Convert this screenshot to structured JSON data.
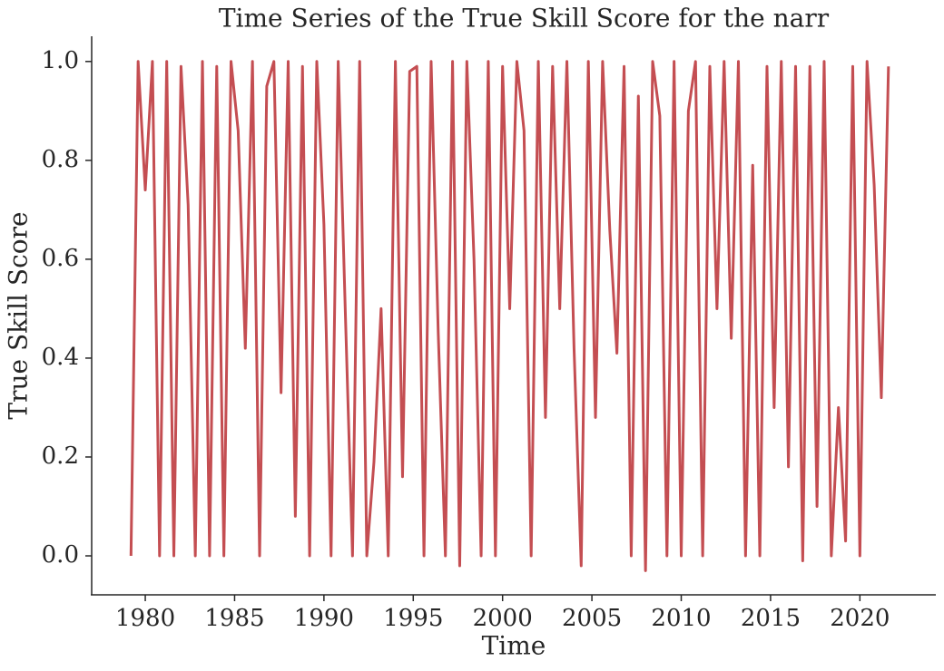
{
  "chart_data": {
    "type": "line",
    "title": "Time Series of the True Skill Score for the narr",
    "x_label": "Time",
    "y_label": "True Skill Score",
    "x": [
      1979.2,
      1979.6,
      1980.0,
      1980.4,
      1980.8,
      1981.2,
      1981.6,
      1982.0,
      1982.4,
      1982.8,
      1983.2,
      1983.6,
      1984.0,
      1984.4,
      1984.8,
      1985.2,
      1985.6,
      1986.0,
      1986.4,
      1986.8,
      1987.2,
      1987.6,
      1988.0,
      1988.4,
      1988.8,
      1989.2,
      1989.6,
      1990.0,
      1990.4,
      1990.8,
      1991.2,
      1991.6,
      1992.0,
      1992.4,
      1992.8,
      1993.2,
      1993.6,
      1994.0,
      1994.4,
      1994.8,
      1995.2,
      1995.6,
      1996.0,
      1996.4,
      1996.8,
      1997.2,
      1997.6,
      1998.0,
      1998.4,
      1998.8,
      1999.2,
      1999.6,
      2000.0,
      2000.4,
      2000.8,
      2001.2,
      2001.6,
      2002.0,
      2002.4,
      2002.8,
      2003.2,
      2003.6,
      2004.0,
      2004.4,
      2004.8,
      2005.2,
      2005.6,
      2006.0,
      2006.4,
      2006.8,
      2007.2,
      2007.6,
      2008.0,
      2008.4,
      2008.8,
      2009.2,
      2009.6,
      2010.0,
      2010.4,
      2010.8,
      2011.2,
      2011.6,
      2012.0,
      2012.4,
      2012.8,
      2013.2,
      2013.6,
      2014.0,
      2014.4,
      2014.8,
      2015.2,
      2015.6,
      2016.0,
      2016.4,
      2016.8,
      2017.2,
      2017.6,
      2018.0,
      2018.4,
      2018.8,
      2019.2,
      2019.6,
      2020.0,
      2020.4,
      2020.8,
      2021.2,
      2021.6
    ],
    "series": [
      {
        "color": "#c44e52",
        "values": [
          0.0,
          1.0,
          0.74,
          1.0,
          0.0,
          1.0,
          0.0,
          0.99,
          0.71,
          0.0,
          1.0,
          0.0,
          0.99,
          0.0,
          1.0,
          0.86,
          0.42,
          1.0,
          0.0,
          0.95,
          1.0,
          0.33,
          1.0,
          0.08,
          0.99,
          0.0,
          1.0,
          0.67,
          0.0,
          1.0,
          0.49,
          0.0,
          1.0,
          0.0,
          0.19,
          0.5,
          0.0,
          1.0,
          0.16,
          0.98,
          0.99,
          0.0,
          1.0,
          0.45,
          0.0,
          1.0,
          -0.02,
          1.0,
          0.6,
          0.0,
          1.0,
          0.0,
          0.99,
          0.5,
          1.0,
          0.86,
          0.0,
          1.0,
          0.28,
          0.99,
          0.5,
          1.0,
          0.42,
          -0.02,
          1.0,
          0.28,
          1.0,
          0.66,
          0.41,
          0.99,
          0.0,
          0.93,
          -0.03,
          1.0,
          0.89,
          0.0,
          1.0,
          0.0,
          0.9,
          1.0,
          0.0,
          0.99,
          0.5,
          1.0,
          0.44,
          1.0,
          0.0,
          0.79,
          0.0,
          0.99,
          0.3,
          1.0,
          0.18,
          0.99,
          -0.01,
          0.99,
          0.1,
          1.0,
          0.0,
          0.3,
          0.03,
          0.99,
          0.0,
          1.0,
          0.75,
          0.32,
          0.99
        ]
      }
    ],
    "xlim": [
      1977.0,
      2024.2
    ],
    "xticks": [
      1980,
      1985,
      1990,
      1995,
      2000,
      2005,
      2010,
      2015,
      2020
    ],
    "ylim": [
      -0.077,
      1.051
    ],
    "yticks": [
      {
        "value": 0,
        "label": "0.0"
      },
      0.2,
      0.4,
      0.6,
      0.8,
      {
        "value": 1,
        "label": "1.0"
      }
    ]
  }
}
